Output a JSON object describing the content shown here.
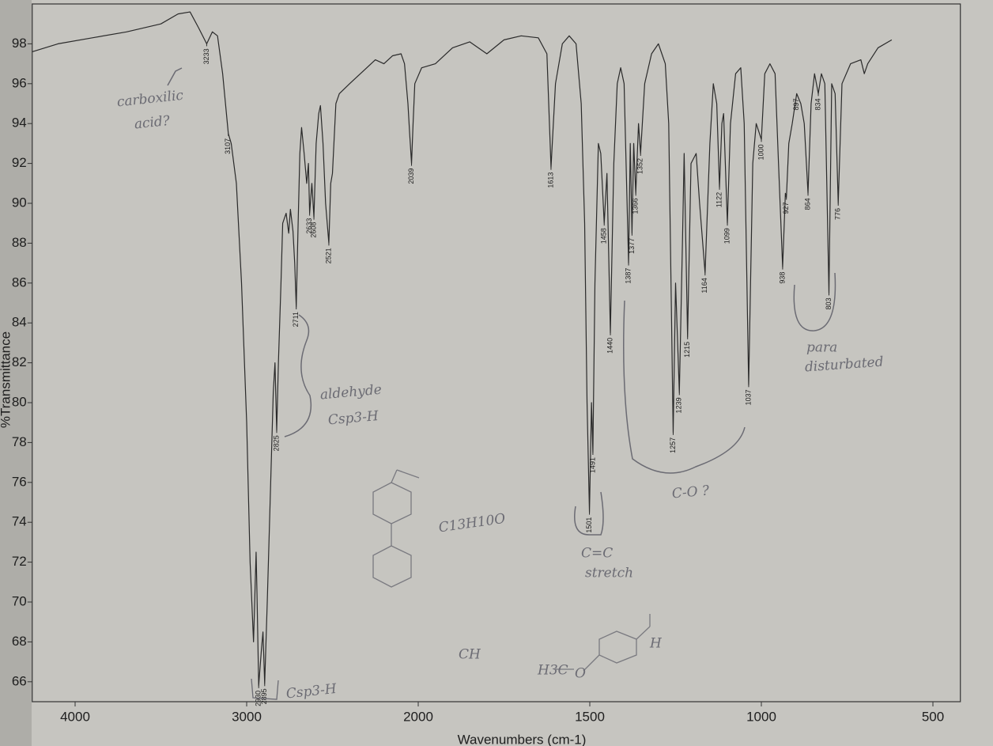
{
  "chart_data": {
    "type": "line",
    "xlabel": "Wavenumbers (cm-1)",
    "ylabel": "%Transmittance",
    "color": "#2a2a2a",
    "xlim": [
      4250,
      420
    ],
    "ylim": [
      65,
      100
    ],
    "xticks": [
      4000,
      3000,
      2000,
      1500,
      1000,
      500
    ],
    "yticks": [
      66,
      68,
      70,
      72,
      74,
      76,
      78,
      80,
      82,
      84,
      86,
      88,
      90,
      92,
      94,
      96,
      98
    ],
    "x": [
      4250,
      4100,
      3900,
      3700,
      3500,
      3400,
      3330,
      3280,
      3233,
      3200,
      3170,
      3140,
      3107,
      3090,
      3060,
      3030,
      3000,
      2980,
      2960,
      2945,
      2940,
      2930,
      2915,
      2905,
      2895,
      2880,
      2860,
      2845,
      2835,
      2825,
      2815,
      2800,
      2790,
      2770,
      2755,
      2745,
      2730,
      2720,
      2711,
      2700,
      2690,
      2680,
      2665,
      2650,
      2640,
      2633,
      2620,
      2608,
      2595,
      2580,
      2570,
      2555,
      2540,
      2521,
      2510,
      2500,
      2480,
      2460,
      2400,
      2300,
      2250,
      2200,
      2150,
      2100,
      2080,
      2060,
      2050,
      2039,
      2030,
      2020,
      1990,
      1950,
      1900,
      1850,
      1800,
      1750,
      1700,
      1650,
      1625,
      1613,
      1600,
      1580,
      1560,
      1540,
      1525,
      1515,
      1508,
      1501,
      1495,
      1491,
      1485,
      1475,
      1468,
      1458,
      1450,
      1440,
      1430,
      1420,
      1410,
      1400,
      1387,
      1382,
      1377,
      1372,
      1366,
      1358,
      1352,
      1340,
      1320,
      1300,
      1290,
      1280,
      1270,
      1257,
      1250,
      1239,
      1230,
      1225,
      1215,
      1205,
      1190,
      1180,
      1164,
      1150,
      1140,
      1130,
      1122,
      1115,
      1110,
      1099,
      1090,
      1075,
      1060,
      1050,
      1037,
      1025,
      1015,
      1000,
      990,
      975,
      960,
      950,
      938,
      930,
      927,
      920,
      910,
      897,
      885,
      875,
      864,
      855,
      845,
      834,
      825,
      815,
      803,
      795,
      785,
      776,
      765,
      740,
      710,
      700,
      690,
      660,
      620
    ],
    "values": [
      97.6,
      98.0,
      98.3,
      98.6,
      99.0,
      99.5,
      99.6,
      98.8,
      98.0,
      98.6,
      98.4,
      96.5,
      93.5,
      93.0,
      91,
      86,
      79,
      72,
      68,
      72.5,
      70.5,
      65.8,
      67.5,
      68.5,
      65.9,
      70,
      76,
      80.5,
      82,
      78.6,
      82,
      86,
      89,
      89.5,
      88.5,
      89.7,
      88.6,
      87,
      84.8,
      89,
      92.5,
      93.8,
      92.5,
      91,
      92,
      89.5,
      91,
      89.3,
      93,
      94.5,
      94.9,
      93,
      90,
      88.0,
      91,
      91.5,
      95,
      95.5,
      96,
      96.8,
      97.2,
      97.0,
      97.4,
      97.5,
      97.0,
      95,
      93.5,
      92.0,
      94,
      96,
      96.8,
      97.0,
      97.8,
      98.1,
      97.5,
      98.2,
      98.4,
      98.3,
      97.5,
      91.8,
      96,
      98,
      98.4,
      98.0,
      95,
      89,
      80,
      74.5,
      80,
      77.5,
      86,
      93,
      92.5,
      89.0,
      91.5,
      83.5,
      92,
      96,
      96.8,
      96,
      87.0,
      93,
      88.5,
      93,
      90.5,
      94.0,
      92.5,
      96,
      97.5,
      98.0,
      97.5,
      97.0,
      94,
      78.5,
      86,
      80.5,
      88,
      92.5,
      83.3,
      92,
      92.5,
      90,
      86.5,
      93,
      96,
      95,
      90.8,
      94,
      94.5,
      89.0,
      94,
      96.5,
      96.8,
      94,
      80.9,
      92,
      94.0,
      93.2,
      96.5,
      97,
      96.5,
      92,
      86.8,
      90.5,
      90.3,
      93,
      94.0,
      95.5,
      95,
      94,
      90.5,
      95,
      96.5,
      95.5,
      96.5,
      96,
      85.5,
      96,
      95.5,
      90,
      96,
      97,
      97.2,
      96.5,
      97,
      97.8,
      98.2
    ],
    "peaks": [
      {
        "x": 3233,
        "y": 98.0
      },
      {
        "x": 3107,
        "y": 93.5
      },
      {
        "x": 2930,
        "y": 65.8
      },
      {
        "x": 2895,
        "y": 65.9
      },
      {
        "x": 2825,
        "y": 78.6
      },
      {
        "x": 2711,
        "y": 84.8
      },
      {
        "x": 2633,
        "y": 89.5
      },
      {
        "x": 2608,
        "y": 89.3
      },
      {
        "x": 2521,
        "y": 88.0
      },
      {
        "x": 2039,
        "y": 92.0
      },
      {
        "x": 1613,
        "y": 91.8
      },
      {
        "x": 1501,
        "y": 74.5
      },
      {
        "x": 1491,
        "y": 77.5
      },
      {
        "x": 1458,
        "y": 89.0
      },
      {
        "x": 1440,
        "y": 83.5
      },
      {
        "x": 1387,
        "y": 87.0
      },
      {
        "x": 1377,
        "y": 88.5
      },
      {
        "x": 1366,
        "y": 90.5
      },
      {
        "x": 1352,
        "y": 92.5
      },
      {
        "x": 1257,
        "y": 78.5
      },
      {
        "x": 1239,
        "y": 80.5
      },
      {
        "x": 1215,
        "y": 83.3
      },
      {
        "x": 1164,
        "y": 86.5
      },
      {
        "x": 1122,
        "y": 90.8
      },
      {
        "x": 1099,
        "y": 89.0
      },
      {
        "x": 1037,
        "y": 80.9
      },
      {
        "x": 1000,
        "y": 93.2
      },
      {
        "x": 938,
        "y": 86.8
      },
      {
        "x": 927,
        "y": 90.3
      },
      {
        "x": 897,
        "y": 95.5
      },
      {
        "x": 864,
        "y": 90.5
      },
      {
        "x": 834,
        "y": 95.5
      },
      {
        "x": 803,
        "y": 85.5
      },
      {
        "x": 776,
        "y": 90
      }
    ],
    "annotations": [
      "carboxilic",
      "acid?",
      "aldehyde",
      "Csp3-H",
      "C13H10O",
      "C=C",
      "stretch",
      "C-O ?",
      "para",
      "disturbated",
      "Csp3-H",
      "CH",
      "H3C",
      "O",
      "H"
    ]
  }
}
